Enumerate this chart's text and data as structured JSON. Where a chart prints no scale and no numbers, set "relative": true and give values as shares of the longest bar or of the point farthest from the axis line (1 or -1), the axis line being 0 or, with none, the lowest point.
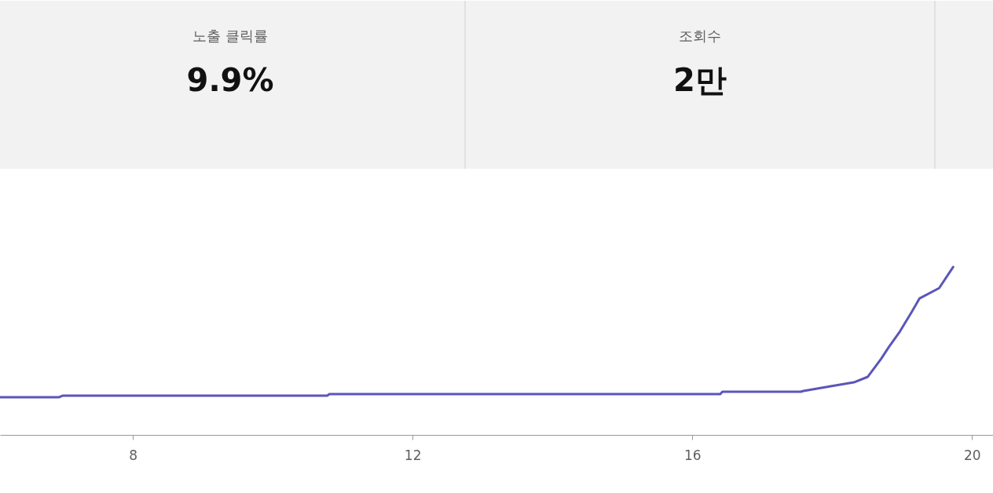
{
  "chart_data": [
    {
      "type": "other",
      "categories": [
        "노출 클릭률",
        "조회수"
      ],
      "values": [
        9.9,
        2
      ],
      "value_labels": [
        "9.9%",
        "2만"
      ]
    },
    {
      "type": "line",
      "relative": true,
      "x": [
        6.1,
        6.94,
        7.0,
        10.78,
        10.81,
        16.4,
        16.43,
        17.55,
        17.59,
        17.98,
        18.31,
        18.51,
        18.7,
        18.81,
        18.97,
        19.14,
        19.25,
        19.53,
        19.73
      ],
      "series": [
        {
          "color": "#5b56b8",
          "values": [
            0.224,
            0.224,
            0.234,
            0.234,
            0.243,
            0.243,
            0.257,
            0.257,
            0.262,
            0.29,
            0.313,
            0.346,
            0.453,
            0.523,
            0.617,
            0.734,
            0.813,
            0.874,
            1
          ]
        }
      ],
      "xlim": [
        6.1,
        20.3
      ],
      "xticks": [
        8,
        12,
        16,
        20
      ],
      "tick_labels": "x"
    }
  ]
}
